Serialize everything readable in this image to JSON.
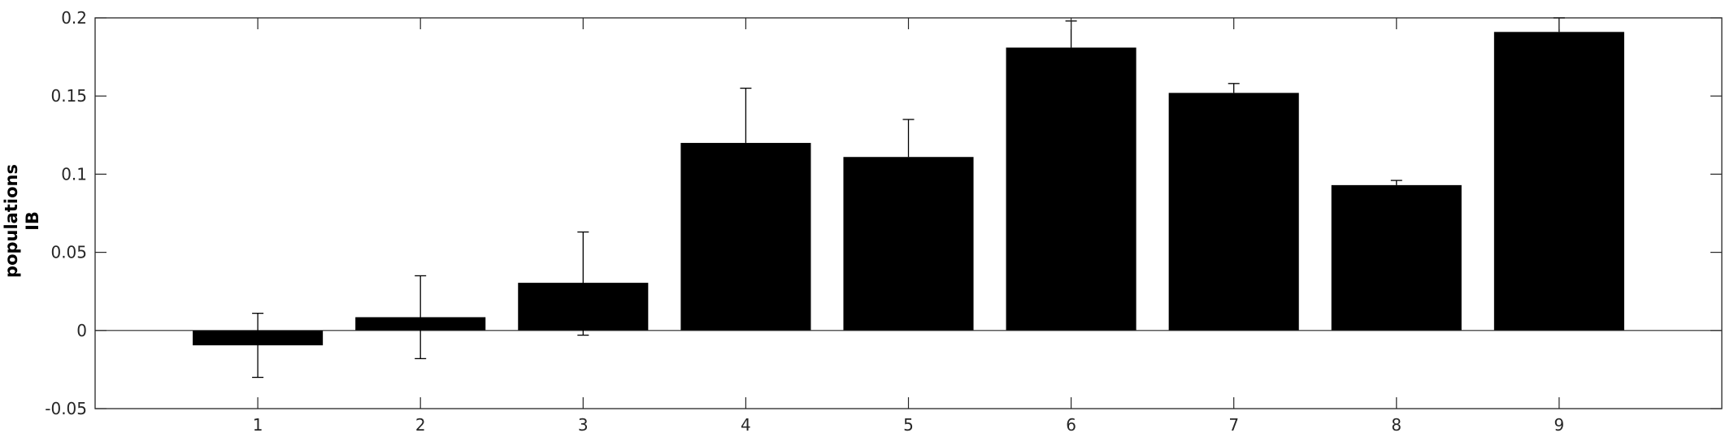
{
  "chart_data": {
    "type": "bar",
    "title": "",
    "xlabel": "",
    "ylabel": [
      "populations",
      "IB"
    ],
    "categories": [
      "1",
      "2",
      "3",
      "4",
      "5",
      "6",
      "7",
      "8",
      "9"
    ],
    "values": [
      -0.0095,
      0.0085,
      0.0305,
      0.12,
      0.111,
      0.181,
      0.152,
      0.093,
      0.191
    ],
    "error_upper": [
      0.011,
      0.035,
      0.063,
      0.155,
      0.135,
      0.198,
      0.158,
      0.096,
      0.2
    ],
    "error_lower": [
      -0.03,
      -0.018,
      -0.003,
      0.12,
      0.111,
      0.181,
      0.152,
      0.093,
      0.191
    ],
    "ylim": [
      -0.05,
      0.2
    ],
    "xlim": [
      0,
      10
    ],
    "yticks": [
      -0.05,
      0,
      0.05,
      0.1,
      0.15,
      0.2
    ],
    "ytick_labels": [
      "-0.05",
      "0",
      "0.05",
      "0.1",
      "0.15",
      "0.2"
    ],
    "bar_color": "#000000",
    "zero_line": true,
    "grid": false,
    "legend": "none"
  }
}
